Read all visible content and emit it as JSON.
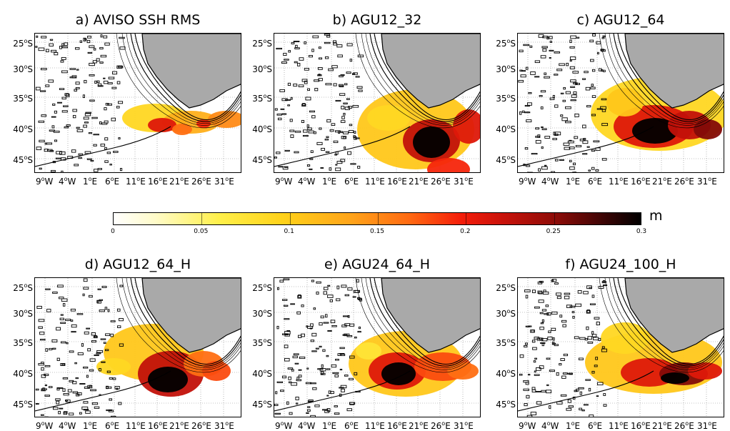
{
  "panels": [
    {
      "title": "a) AVISO SSH RMS"
    },
    {
      "title": "b) AGU12_32"
    },
    {
      "title": "c) AGU12_64"
    },
    {
      "title": "d) AGU12_64_H"
    },
    {
      "title": "e) AGU24_64_H"
    },
    {
      "title": "f) AGU24_100_H"
    }
  ],
  "axes": {
    "y_labels": [
      "25",
      "30",
      "35",
      "40",
      "45"
    ],
    "y_suffix": "S",
    "x_labels": [
      {
        "v": "9",
        "h": "W"
      },
      {
        "v": "4",
        "h": "W"
      },
      {
        "v": "1",
        "h": "E"
      },
      {
        "v": "6",
        "h": "E"
      },
      {
        "v": "11",
        "h": "E"
      },
      {
        "v": "16",
        "h": "E"
      },
      {
        "v": "21",
        "h": "E"
      },
      {
        "v": "26",
        "h": "E"
      },
      {
        "v": "31",
        "h": "E"
      }
    ],
    "degree_symbol": "o"
  },
  "colorbar": {
    "ticks": [
      "0",
      "0.05",
      "0.1",
      "0.15",
      "0.2",
      "0.25",
      "0.3"
    ],
    "unit": "m",
    "min": 0,
    "max": 0.3
  }
}
